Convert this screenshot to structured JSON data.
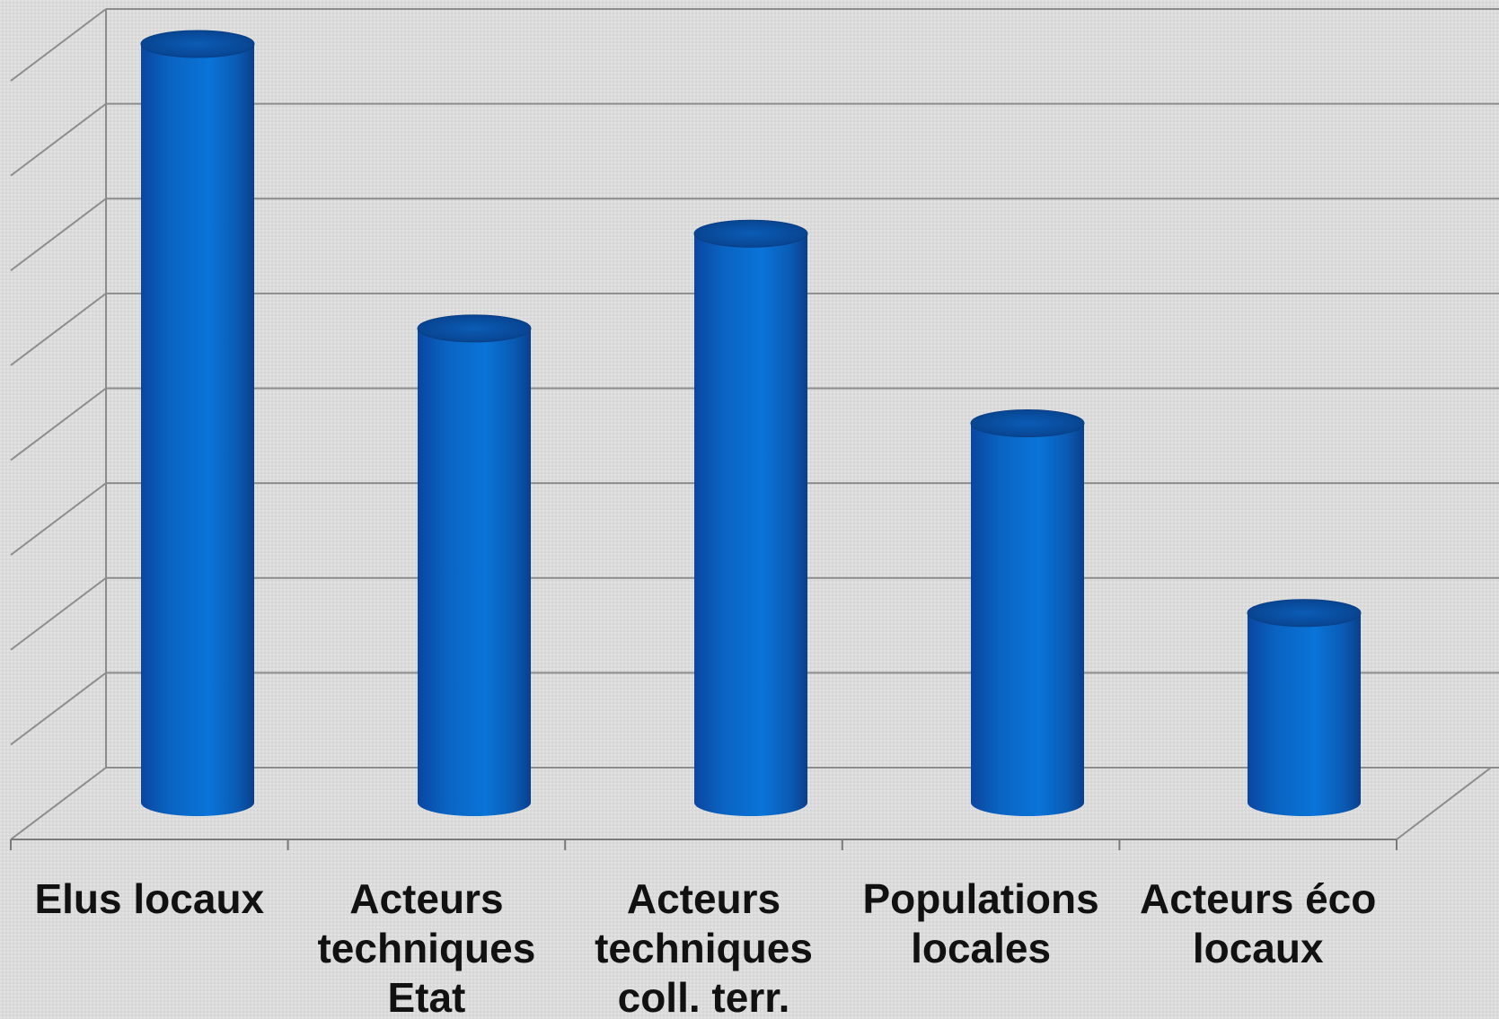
{
  "chart_data": {
    "type": "bar",
    "style": "3d-cylinder",
    "categories": [
      [
        "Elus locaux"
      ],
      [
        "Acteurs",
        "techniques",
        "Etat"
      ],
      [
        "Acteurs",
        "techniques",
        "coll. terr."
      ],
      [
        "Populations",
        "locales"
      ],
      [
        "Acteurs éco",
        "locaux"
      ]
    ],
    "values": [
      8,
      5,
      6,
      4,
      2
    ],
    "ylim": [
      0,
      8
    ],
    "grid": true,
    "y_tick_labels_shown": false,
    "colors": {
      "bar": "#0a6fd0",
      "bar_dark": "#0a3f86",
      "bar_light": "#2f8ee6",
      "grid": "#8c8c8c",
      "wall": "#dcdcdc"
    }
  }
}
